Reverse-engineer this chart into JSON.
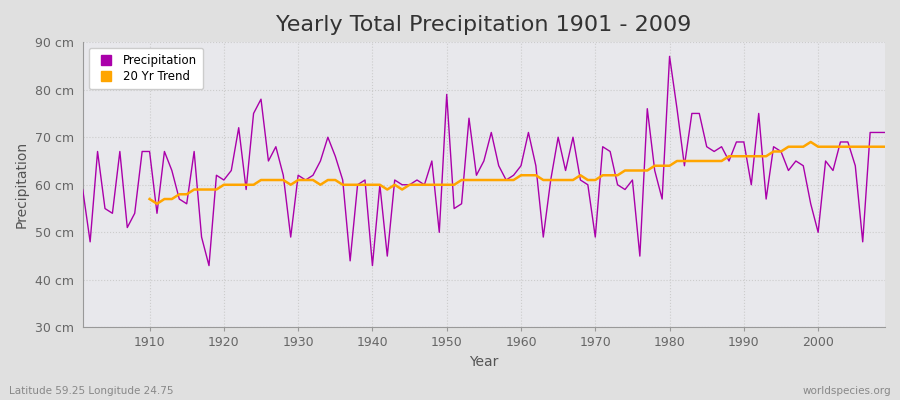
{
  "title": "Yearly Total Precipitation 1901 - 2009",
  "xlabel": "Year",
  "ylabel": "Precipitation",
  "subtitle_left": "Latitude 59.25 Longitude 24.75",
  "subtitle_right": "worldspecies.org",
  "years": [
    1901,
    1902,
    1903,
    1904,
    1905,
    1906,
    1907,
    1908,
    1909,
    1910,
    1911,
    1912,
    1913,
    1914,
    1915,
    1916,
    1917,
    1918,
    1919,
    1920,
    1921,
    1922,
    1923,
    1924,
    1925,
    1926,
    1927,
    1928,
    1929,
    1930,
    1931,
    1932,
    1933,
    1934,
    1935,
    1936,
    1937,
    1938,
    1939,
    1940,
    1941,
    1942,
    1943,
    1944,
    1945,
    1946,
    1947,
    1948,
    1949,
    1950,
    1951,
    1952,
    1953,
    1954,
    1955,
    1956,
    1957,
    1958,
    1959,
    1960,
    1961,
    1962,
    1963,
    1964,
    1965,
    1966,
    1967,
    1968,
    1969,
    1970,
    1971,
    1972,
    1973,
    1974,
    1975,
    1976,
    1977,
    1978,
    1979,
    1980,
    1981,
    1982,
    1983,
    1984,
    1985,
    1986,
    1987,
    1988,
    1989,
    1990,
    1991,
    1992,
    1993,
    1994,
    1995,
    1996,
    1997,
    1998,
    1999,
    2000,
    2001,
    2002,
    2003,
    2004,
    2005,
    2006,
    2007,
    2008,
    2009
  ],
  "precipitation": [
    59,
    48,
    67,
    55,
    54,
    67,
    51,
    54,
    67,
    67,
    54,
    67,
    63,
    57,
    56,
    67,
    49,
    43,
    62,
    61,
    63,
    72,
    59,
    75,
    78,
    65,
    68,
    62,
    49,
    62,
    61,
    62,
    65,
    70,
    66,
    61,
    44,
    60,
    61,
    43,
    60,
    45,
    61,
    60,
    60,
    61,
    60,
    65,
    50,
    79,
    55,
    56,
    74,
    62,
    65,
    71,
    64,
    61,
    62,
    64,
    71,
    64,
    49,
    61,
    70,
    63,
    70,
    61,
    60,
    49,
    68,
    67,
    60,
    59,
    61,
    45,
    76,
    63,
    57,
    87,
    76,
    64,
    75,
    75,
    68,
    67,
    68,
    65,
    69,
    69,
    60,
    75,
    57,
    68,
    67,
    63,
    65,
    64,
    56,
    50,
    65,
    63,
    69,
    69,
    64,
    48,
    71,
    71,
    71
  ],
  "trend_years": [
    1910,
    1911,
    1912,
    1913,
    1914,
    1915,
    1916,
    1917,
    1918,
    1919,
    1920,
    1921,
    1922,
    1923,
    1924,
    1925,
    1926,
    1927,
    1928,
    1929,
    1930,
    1931,
    1932,
    1933,
    1934,
    1935,
    1936,
    1937,
    1938,
    1939,
    1940,
    1941,
    1942,
    1943,
    1944,
    1945,
    1946,
    1947,
    1948,
    1949,
    1950,
    1951,
    1952,
    1953,
    1954,
    1955,
    1956,
    1957,
    1958,
    1959,
    1960,
    1961,
    1962,
    1963,
    1964,
    1965,
    1966,
    1967,
    1968,
    1969,
    1970,
    1971,
    1972,
    1973,
    1974,
    1975,
    1976,
    1977,
    1978,
    1979,
    1980,
    1981,
    1982,
    1983,
    1984,
    1985,
    1986,
    1987,
    1988,
    1989,
    1990,
    1991,
    1992,
    1993,
    1994,
    1995,
    1996,
    1997,
    1998,
    1999,
    2000,
    2001,
    2002,
    2003,
    2004,
    2005,
    2006,
    2007,
    2008,
    2009
  ],
  "trend": [
    57,
    56,
    57,
    57,
    58,
    58,
    59,
    59,
    59,
    59,
    60,
    60,
    60,
    60,
    60,
    61,
    61,
    61,
    61,
    60,
    61,
    61,
    61,
    60,
    61,
    61,
    60,
    60,
    60,
    60,
    60,
    60,
    59,
    60,
    59,
    60,
    60,
    60,
    60,
    60,
    60,
    60,
    61,
    61,
    61,
    61,
    61,
    61,
    61,
    61,
    62,
    62,
    62,
    61,
    61,
    61,
    61,
    61,
    62,
    61,
    61,
    62,
    62,
    62,
    63,
    63,
    63,
    63,
    64,
    64,
    64,
    65,
    65,
    65,
    65,
    65,
    65,
    65,
    66,
    66,
    66,
    66,
    66,
    66,
    67,
    67,
    68,
    68,
    68,
    69,
    68,
    68,
    68,
    68,
    68,
    68,
    68,
    68,
    68,
    68
  ],
  "precip_color": "#AA00AA",
  "trend_color": "#FFA500",
  "fig_bg_color": "#E0E0E0",
  "plot_bg_color": "#E8E8EC",
  "ylim": [
    30,
    90
  ],
  "xlim": [
    1901,
    2009
  ],
  "yticks": [
    30,
    40,
    50,
    60,
    70,
    80,
    90
  ],
  "ytick_labels": [
    "30 cm",
    "40 cm",
    "50 cm",
    "60 cm",
    "70 cm",
    "80 cm",
    "90 cm"
  ],
  "xticks": [
    1910,
    1920,
    1930,
    1940,
    1950,
    1960,
    1970,
    1980,
    1990,
    2000
  ],
  "title_fontsize": 16,
  "label_fontsize": 10,
  "tick_fontsize": 9
}
